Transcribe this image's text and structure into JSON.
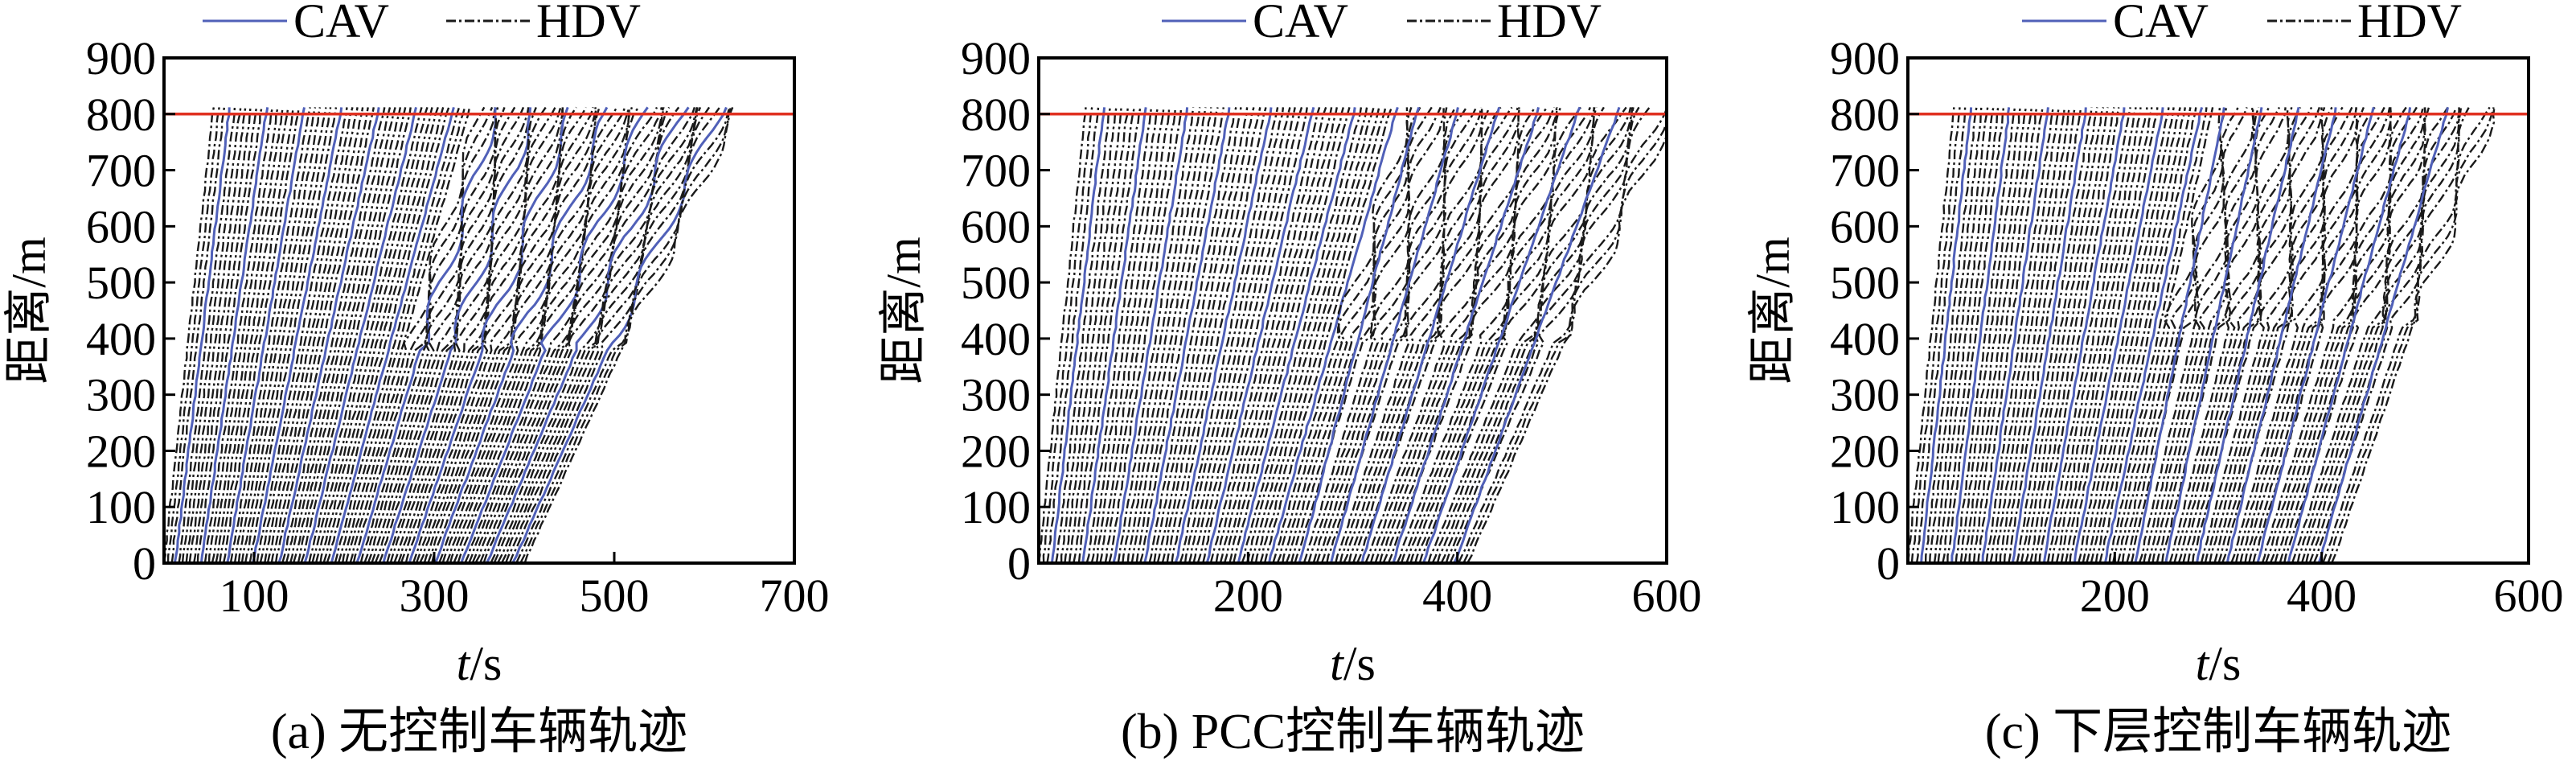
{
  "colors": {
    "cav": "#5060b8",
    "hdv": "#1a1a1a",
    "reference_line": "#e03020"
  },
  "chart_data": [
    {
      "type": "line",
      "panel": "a",
      "caption": "(a) 无控制车辆轨迹",
      "xlabel_var": "t",
      "xlabel_unit": "/s",
      "ylabel": "距离/m",
      "xlim": [
        0,
        700
      ],
      "ylim": [
        0,
        900
      ],
      "xticks": [
        100,
        300,
        500,
        700
      ],
      "yticks": [
        0,
        100,
        200,
        300,
        400,
        500,
        600,
        700,
        800,
        900
      ],
      "reference_line": {
        "y": 800
      },
      "legend": {
        "placement": "top",
        "entries": [
          "CAV",
          "HDV"
        ]
      },
      "series": [
        {
          "name": "CAV",
          "legend_label": "CAV",
          "vehicle_count": 14,
          "entry_times": [
            0,
            27,
            54,
            82,
            109,
            136,
            163,
            191,
            218,
            245,
            272,
            300,
            327,
            355
          ]
        },
        {
          "name": "HDV",
          "legend_label": "HDV",
          "vehicle_count": 84,
          "entry_start": 0,
          "entry_end": 400,
          "exit_start": 55,
          "exit_end": 630,
          "congestion_onset": 200,
          "congestion_zone": [
            380,
            800
          ]
        }
      ]
    },
    {
      "type": "line",
      "panel": "b",
      "caption": "(b) PCC控制车辆轨迹",
      "xlabel_var": "t",
      "xlabel_unit": "/s",
      "ylabel": "距离/m",
      "xlim": [
        0,
        600
      ],
      "ylim": [
        0,
        900
      ],
      "xticks": [
        200,
        400,
        600
      ],
      "yticks": [
        0,
        100,
        200,
        300,
        400,
        500,
        600,
        700,
        800,
        900
      ],
      "reference_line": {
        "y": 800
      },
      "legend": {
        "placement": "top",
        "entries": [
          "CAV",
          "HDV"
        ]
      },
      "series": [
        {
          "name": "CAV",
          "legend_label": "CAV",
          "vehicle_count": 14,
          "entry_times": [
            0,
            26,
            52,
            78,
            104,
            130,
            156,
            182,
            208,
            234,
            260,
            286,
            312,
            338
          ]
        },
        {
          "name": "HDV",
          "legend_label": "HDV",
          "vehicle_count": 84,
          "entry_start": 0,
          "entry_end": 410,
          "exit_start": 45,
          "exit_end": 600,
          "congestion_onset": 220,
          "congestion_zone": [
            400,
            800
          ]
        }
      ]
    },
    {
      "type": "line",
      "panel": "c",
      "caption": "(c) 下层控制车辆轨迹",
      "xlabel_var": "t",
      "xlabel_unit": "/s",
      "ylabel": "距离/m",
      "xlim": [
        0,
        600
      ],
      "ylim": [
        0,
        900
      ],
      "xticks": [
        200,
        400,
        600
      ],
      "yticks": [
        0,
        100,
        200,
        300,
        400,
        500,
        600,
        700,
        800,
        900
      ],
      "reference_line": {
        "y": 800
      },
      "legend": {
        "placement": "top",
        "entries": [
          "CAV",
          "HDV"
        ]
      },
      "series": [
        {
          "name": "CAV",
          "legend_label": "CAV",
          "vehicle_count": 14,
          "entry_times": [
            0,
            26,
            52,
            78,
            104,
            130,
            156,
            182,
            208,
            234,
            260,
            286,
            312,
            338
          ]
        },
        {
          "name": "HDV",
          "legend_label": "HDV",
          "vehicle_count": 84,
          "entry_start": 0,
          "entry_end": 410,
          "exit_start": 45,
          "exit_end": 560,
          "congestion_onset": 200,
          "congestion_zone": [
            420,
            800
          ]
        }
      ]
    }
  ]
}
